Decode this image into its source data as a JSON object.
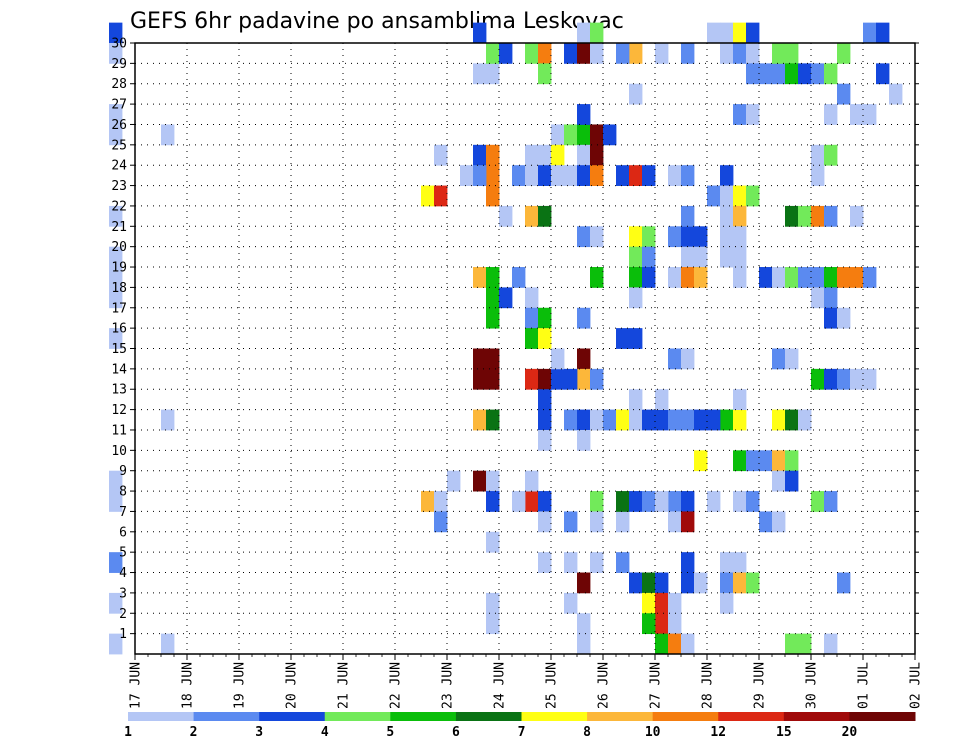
{
  "chart_data": {
    "type": "heatmap",
    "title": "GEFS 6hr padavine po ansamblima Leskovac",
    "xlabel": "",
    "ylabel": "",
    "x_ticks": [
      "17 JUN",
      "18 JUN",
      "19 JUN",
      "20 JUN",
      "21 JUN",
      "22 JUN",
      "23 JUN",
      "24 JUN",
      "25 JUN",
      "26 JUN",
      "27 JUN",
      "28 JUN",
      "29 JUN",
      "30 JUN",
      "01 JUL",
      "02 JUL"
    ],
    "x_range_days": [
      0,
      15
    ],
    "steps_per_day": 4,
    "y_ticks": [
      1,
      2,
      3,
      4,
      5,
      6,
      7,
      8,
      9,
      10,
      11,
      12,
      13,
      14,
      15,
      16,
      17,
      18,
      19,
      20,
      21,
      22,
      23,
      24,
      25,
      26,
      27,
      28,
      29,
      30
    ],
    "y_range": [
      0,
      30
    ],
    "grid": true,
    "colorbar": {
      "labels": [
        "1",
        "2",
        "3",
        "4",
        "5",
        "6",
        "7",
        "8",
        "10",
        "12",
        "15",
        "20"
      ],
      "colors": [
        "#b4c6f5",
        "#5b8af0",
        "#1447dc",
        "#72ea5a",
        "#0abe0a",
        "#0a7314",
        "#ffff14",
        "#fcb73a",
        "#f57d0f",
        "#dc2814",
        "#a00a0a",
        "#6e0505"
      ]
    },
    "cells": [
      [
        16.5,
        30,
        3
      ],
      [
        16.5,
        29,
        1
      ],
      [
        16.5,
        26,
        1
      ],
      [
        16.5,
        25,
        1
      ],
      [
        17.5,
        25,
        1
      ],
      [
        16.5,
        21,
        1
      ],
      [
        16.5,
        19,
        1
      ],
      [
        16.5,
        18,
        1
      ],
      [
        16.5,
        17,
        1
      ],
      [
        16.5,
        15,
        1
      ],
      [
        17.5,
        11,
        1
      ],
      [
        16.5,
        8,
        1
      ],
      [
        16.5,
        7,
        1
      ],
      [
        16.5,
        4,
        2
      ],
      [
        16.5,
        2,
        1
      ],
      [
        16.5,
        0,
        1
      ],
      [
        17.5,
        0,
        1
      ],
      [
        22.5,
        22,
        7
      ],
      [
        22.75,
        22,
        10
      ],
      [
        22.5,
        7,
        8
      ],
      [
        22.75,
        7,
        1
      ],
      [
        22.75,
        6,
        2
      ],
      [
        22.75,
        24,
        1
      ],
      [
        23.0,
        8,
        1
      ],
      [
        23.25,
        23,
        1
      ],
      [
        23.5,
        30,
        3
      ],
      [
        23.5,
        28,
        1
      ],
      [
        23.75,
        28,
        1
      ],
      [
        23.75,
        29,
        4
      ],
      [
        24.0,
        29,
        3
      ],
      [
        23.5,
        24,
        3
      ],
      [
        23.75,
        24,
        9
      ],
      [
        23.75,
        23,
        9
      ],
      [
        23.75,
        22,
        9
      ],
      [
        23.5,
        23,
        2
      ],
      [
        23.5,
        18,
        8
      ],
      [
        23.75,
        18,
        5
      ],
      [
        23.75,
        17,
        5
      ],
      [
        24.0,
        17,
        3
      ],
      [
        23.75,
        16,
        5
      ],
      [
        23.5,
        14,
        12
      ],
      [
        23.75,
        14,
        12
      ],
      [
        23.5,
        13,
        12
      ],
      [
        23.75,
        13,
        12
      ],
      [
        23.5,
        11,
        8
      ],
      [
        23.75,
        11,
        6
      ],
      [
        23.5,
        8,
        12
      ],
      [
        23.75,
        8,
        1
      ],
      [
        23.75,
        7,
        3
      ],
      [
        23.75,
        5,
        1
      ],
      [
        23.75,
        2,
        1
      ],
      [
        23.75,
        1,
        1
      ],
      [
        24.0,
        21,
        1
      ],
      [
        24.25,
        23,
        2
      ],
      [
        24.25,
        18,
        2
      ],
      [
        24.5,
        29,
        4
      ],
      [
        24.75,
        29,
        9
      ],
      [
        24.75,
        28,
        4
      ],
      [
        24.5,
        24,
        1
      ],
      [
        24.75,
        24,
        1
      ],
      [
        24.5,
        23,
        1
      ],
      [
        24.75,
        23,
        3
      ],
      [
        24.5,
        21,
        8
      ],
      [
        24.75,
        21,
        6
      ],
      [
        24.5,
        17,
        1
      ],
      [
        24.5,
        16,
        2
      ],
      [
        24.75,
        16,
        5
      ],
      [
        24.5,
        15,
        5
      ],
      [
        24.75,
        15,
        7
      ],
      [
        24.5,
        13,
        10
      ],
      [
        24.75,
        13,
        12
      ],
      [
        24.75,
        12,
        3
      ],
      [
        24.75,
        11,
        3
      ],
      [
        24.75,
        10,
        1
      ],
      [
        24.5,
        7,
        10
      ],
      [
        24.75,
        7,
        3
      ],
      [
        24.25,
        7,
        1
      ],
      [
        24.5,
        8,
        1
      ],
      [
        24.75,
        4,
        1
      ],
      [
        24.75,
        6,
        1
      ],
      [
        25.0,
        25,
        1
      ],
      [
        25.0,
        24,
        7
      ],
      [
        25.0,
        23,
        1
      ],
      [
        25.0,
        13,
        3
      ],
      [
        25.0,
        14,
        1
      ],
      [
        25.25,
        29,
        3
      ],
      [
        25.5,
        29,
        12
      ],
      [
        25.75,
        29,
        1
      ],
      [
        25.5,
        30,
        1
      ],
      [
        25.75,
        30,
        4
      ],
      [
        25.25,
        25,
        4
      ],
      [
        25.5,
        25,
        5
      ],
      [
        25.5,
        26,
        3
      ],
      [
        25.75,
        25,
        12
      ],
      [
        26.0,
        25,
        3
      ],
      [
        25.5,
        24,
        1
      ],
      [
        25.75,
        24,
        12
      ],
      [
        25.25,
        23,
        1
      ],
      [
        25.5,
        23,
        3
      ],
      [
        25.75,
        23,
        9
      ],
      [
        25.5,
        20,
        2
      ],
      [
        25.75,
        20,
        1
      ],
      [
        25.75,
        18,
        5
      ],
      [
        25.5,
        16,
        2
      ],
      [
        25.5,
        14,
        12
      ],
      [
        25.5,
        13,
        8
      ],
      [
        25.25,
        13,
        3
      ],
      [
        25.75,
        13,
        2
      ],
      [
        25.25,
        11,
        2
      ],
      [
        25.5,
        11,
        3
      ],
      [
        25.75,
        11,
        1
      ],
      [
        25.5,
        10,
        1
      ],
      [
        25.75,
        7,
        4
      ],
      [
        25.25,
        6,
        2
      ],
      [
        25.75,
        6,
        1
      ],
      [
        25.25,
        4,
        1
      ],
      [
        25.75,
        4,
        1
      ],
      [
        25.5,
        3,
        12
      ],
      [
        25.25,
        2,
        1
      ],
      [
        25.5,
        1,
        1
      ],
      [
        25.5,
        0,
        1
      ],
      [
        26.0,
        11,
        2
      ],
      [
        26.25,
        11,
        7
      ],
      [
        26.5,
        11,
        1
      ],
      [
        26.25,
        4,
        2
      ],
      [
        26.25,
        6,
        1
      ],
      [
        26.5,
        29,
        8
      ],
      [
        26.25,
        29,
        2
      ],
      [
        26.5,
        27,
        1
      ],
      [
        26.25,
        23,
        3
      ],
      [
        26.5,
        23,
        10
      ],
      [
        26.75,
        23,
        3
      ],
      [
        26.25,
        15,
        3
      ],
      [
        26.5,
        15,
        3
      ],
      [
        26.5,
        20,
        7
      ],
      [
        26.75,
        20,
        4
      ],
      [
        26.5,
        19,
        4
      ],
      [
        26.75,
        19,
        2
      ],
      [
        26.5,
        18,
        5
      ],
      [
        26.75,
        18,
        3
      ],
      [
        26.5,
        17,
        1
      ],
      [
        26.75,
        11,
        3
      ],
      [
        26.5,
        12,
        1
      ],
      [
        26.25,
        7,
        6
      ],
      [
        26.5,
        7,
        3
      ],
      [
        26.75,
        7,
        2
      ],
      [
        26.5,
        3,
        3
      ],
      [
        26.75,
        3,
        6
      ],
      [
        27.0,
        3,
        3
      ],
      [
        26.75,
        2,
        7
      ],
      [
        27.0,
        2,
        10
      ],
      [
        27.0,
        1,
        10
      ],
      [
        26.75,
        1,
        5
      ],
      [
        27.0,
        0,
        5
      ],
      [
        27.25,
        1,
        1
      ],
      [
        27.25,
        2,
        1
      ],
      [
        27.25,
        0,
        9
      ],
      [
        27.5,
        0,
        1
      ],
      [
        27.25,
        23,
        1
      ],
      [
        27.5,
        23,
        2
      ],
      [
        27.25,
        20,
        2
      ],
      [
        27.5,
        20,
        3
      ],
      [
        27.75,
        20,
        3
      ],
      [
        27.5,
        21,
        2
      ],
      [
        27.5,
        19,
        1
      ],
      [
        27.75,
        19,
        1
      ],
      [
        27.25,
        18,
        1
      ],
      [
        27.5,
        18,
        9
      ],
      [
        27.75,
        18,
        8
      ],
      [
        27.25,
        14,
        2
      ],
      [
        27.5,
        14,
        1
      ],
      [
        27.0,
        11,
        3
      ],
      [
        27.25,
        11,
        2
      ],
      [
        27.5,
        11,
        2
      ],
      [
        27.75,
        11,
        3
      ],
      [
        27.0,
        12,
        1
      ],
      [
        27.25,
        7,
        2
      ],
      [
        27.0,
        7,
        1
      ],
      [
        27.5,
        7,
        3
      ],
      [
        27.25,
        6,
        1
      ],
      [
        27.5,
        6,
        11
      ],
      [
        27.5,
        4,
        3
      ],
      [
        27.5,
        3,
        3
      ],
      [
        27.75,
        3,
        1
      ],
      [
        27.0,
        29,
        1
      ],
      [
        27.5,
        29,
        2
      ],
      [
        28.0,
        30,
        1
      ],
      [
        28.25,
        30,
        1
      ],
      [
        28.5,
        30,
        7
      ],
      [
        28.75,
        30,
        3
      ],
      [
        28.25,
        29,
        1
      ],
      [
        28.5,
        29,
        2
      ],
      [
        28.75,
        29,
        1
      ],
      [
        28.75,
        28,
        2
      ],
      [
        29.0,
        28,
        2
      ],
      [
        29.25,
        28,
        2
      ],
      [
        28.5,
        26,
        2
      ],
      [
        28.75,
        26,
        1
      ],
      [
        28.25,
        23,
        3
      ],
      [
        28.0,
        22,
        2
      ],
      [
        28.25,
        22,
        1
      ],
      [
        28.5,
        22,
        7
      ],
      [
        28.75,
        22,
        4
      ],
      [
        28.25,
        21,
        1
      ],
      [
        28.5,
        21,
        8
      ],
      [
        28.25,
        20,
        1
      ],
      [
        28.5,
        20,
        1
      ],
      [
        28.25,
        19,
        1
      ],
      [
        28.5,
        19,
        1
      ],
      [
        28.5,
        18,
        1
      ],
      [
        28.25,
        11,
        5
      ],
      [
        28.5,
        11,
        7
      ],
      [
        28.0,
        11,
        3
      ],
      [
        28.5,
        12,
        1
      ],
      [
        27.75,
        9,
        7
      ],
      [
        28.5,
        9,
        5
      ],
      [
        28.75,
        9,
        2
      ],
      [
        29.0,
        9,
        2
      ],
      [
        29.25,
        9,
        8
      ],
      [
        29.5,
        9,
        4
      ],
      [
        29.25,
        8,
        1
      ],
      [
        29.5,
        8,
        3
      ],
      [
        28.0,
        7,
        1
      ],
      [
        28.5,
        7,
        1
      ],
      [
        28.75,
        7,
        2
      ],
      [
        29.0,
        6,
        2
      ],
      [
        29.25,
        6,
        1
      ],
      [
        28.25,
        4,
        1
      ],
      [
        28.5,
        4,
        1
      ],
      [
        28.25,
        3,
        2
      ],
      [
        28.5,
        3,
        8
      ],
      [
        28.75,
        3,
        4
      ],
      [
        28.25,
        2,
        1
      ],
      [
        29.25,
        29,
        4
      ],
      [
        29.5,
        29,
        4
      ],
      [
        29.5,
        28,
        5
      ],
      [
        29.75,
        28,
        3
      ],
      [
        30.0,
        28,
        2
      ],
      [
        30.25,
        28,
        4
      ],
      [
        29.0,
        18,
        3
      ],
      [
        29.25,
        18,
        1
      ],
      [
        29.5,
        18,
        4
      ],
      [
        29.75,
        18,
        2
      ],
      [
        30.0,
        18,
        2
      ],
      [
        30.25,
        18,
        5
      ],
      [
        30.5,
        18,
        9
      ],
      [
        30.75,
        18,
        9
      ],
      [
        31.0,
        18,
        2
      ],
      [
        29.5,
        21,
        6
      ],
      [
        29.75,
        21,
        4
      ],
      [
        30.0,
        21,
        9
      ],
      [
        30.25,
        21,
        2
      ],
      [
        29.25,
        14,
        2
      ],
      [
        29.5,
        14,
        1
      ],
      [
        29.25,
        11,
        7
      ],
      [
        29.5,
        11,
        6
      ],
      [
        29.75,
        11,
        1
      ],
      [
        30.0,
        24,
        1
      ],
      [
        30.25,
        24,
        4
      ],
      [
        30.0,
        23,
        1
      ],
      [
        30.0,
        17,
        1
      ],
      [
        30.25,
        17,
        2
      ],
      [
        30.25,
        16,
        3
      ],
      [
        30.5,
        16,
        1
      ],
      [
        30.0,
        13,
        5
      ],
      [
        30.25,
        13,
        3
      ],
      [
        30.5,
        13,
        2
      ],
      [
        30.75,
        13,
        1
      ],
      [
        31.0,
        13,
        1
      ],
      [
        30.0,
        7,
        4
      ],
      [
        30.25,
        7,
        2
      ],
      [
        30.5,
        3,
        2
      ],
      [
        29.5,
        0,
        4
      ],
      [
        29.75,
        0,
        4
      ],
      [
        30.25,
        0,
        1
      ],
      [
        30.5,
        27,
        2
      ],
      [
        30.75,
        26,
        1
      ],
      [
        31.0,
        26,
        1
      ],
      [
        30.25,
        26,
        1
      ],
      [
        30.5,
        29,
        4
      ],
      [
        31.0,
        30,
        2
      ],
      [
        31.25,
        30,
        3
      ],
      [
        31.25,
        28,
        3
      ],
      [
        31.5,
        27,
        1
      ],
      [
        30.75,
        21,
        1
      ]
    ]
  }
}
